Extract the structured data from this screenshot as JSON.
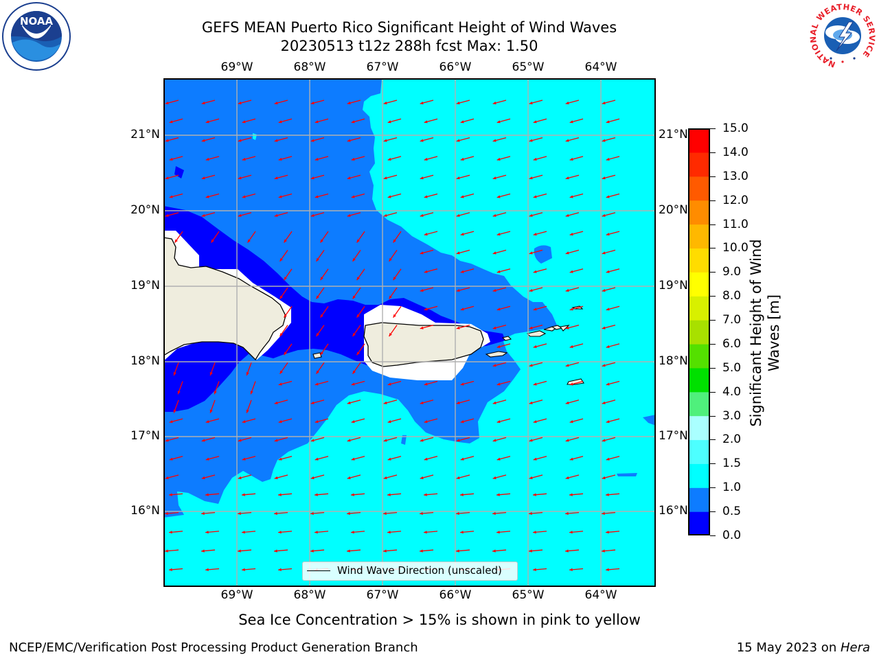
{
  "header": {
    "title_line1": "GEFS MEAN Puerto Rico Significant Height of Wind Waves",
    "title_line2": "20230513 t12z 288h fcst   Max: 1.50"
  },
  "logos": {
    "noaa_text": "NOAA",
    "nws_ring_text": "NATIONAL WEATHER SERVICE"
  },
  "map": {
    "lon_ticks": [
      "69°W",
      "68°W",
      "67°W",
      "66°W",
      "65°W",
      "64°W"
    ],
    "lat_ticks": [
      "21°N",
      "20°N",
      "19°N",
      "18°N",
      "17°N",
      "16°N"
    ],
    "legend_label": "Wind Wave Direction (unscaled)",
    "land_color": "#efedde",
    "arrow_color": "#ff0000"
  },
  "colorbar": {
    "label_line1": "Significant Height of Wind",
    "label_line2": "Waves [m]",
    "ticks": [
      "15.0",
      "14.0",
      "13.0",
      "12.0",
      "11.0",
      "10.0",
      "9.0",
      "8.0",
      "7.0",
      "6.0",
      "5.0",
      "4.0",
      "3.0",
      "2.0",
      "1.5",
      "1.0",
      "0.5",
      "0.0"
    ],
    "colors": [
      "#0000ff",
      "#0d7cff",
      "#00ffff",
      "#4dffff",
      "#aaffff",
      "#4ff07c",
      "#00e000",
      "#54e000",
      "#a8e000",
      "#d8f000",
      "#ffff00",
      "#ffdc00",
      "#ffb800",
      "#ff8c00",
      "#ff5a00",
      "#ff2a00",
      "#ff0000"
    ]
  },
  "footer": {
    "sea_ice_note": "Sea Ice Concentration > 15% is shown in pink to yellow",
    "branch": "NCEP/EMC/Verification Post Processing Product Generation Branch",
    "date": "15 May 2023 on ",
    "machine": "Hera"
  }
}
